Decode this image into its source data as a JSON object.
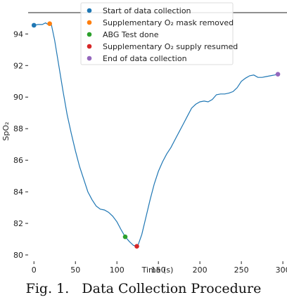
{
  "chart_data": {
    "type": "line",
    "xlabel": "Time (s)",
    "ylabel": "SpO₂",
    "xlim": [
      -7,
      305
    ],
    "ylim": [
      79.6,
      95.35
    ],
    "xticks": [
      0,
      50,
      100,
      150,
      200,
      250,
      300
    ],
    "yticks": [
      80,
      82,
      84,
      86,
      88,
      90,
      92,
      94
    ],
    "grid": false,
    "legend_position": "top",
    "line_color": "#1f77b4",
    "series": [
      {
        "values": [
          [
            0,
            94.55
          ],
          [
            5,
            94.6
          ],
          [
            10,
            94.6
          ],
          [
            14,
            94.7
          ],
          [
            17,
            94.6
          ],
          [
            19,
            94.65
          ],
          [
            21,
            94.6
          ],
          [
            25,
            93.6
          ],
          [
            30,
            92.0
          ],
          [
            35,
            90.4
          ],
          [
            40,
            88.9
          ],
          [
            45,
            87.7
          ],
          [
            50,
            86.6
          ],
          [
            55,
            85.6
          ],
          [
            60,
            84.8
          ],
          [
            65,
            84.0
          ],
          [
            70,
            83.5
          ],
          [
            75,
            83.1
          ],
          [
            80,
            82.9
          ],
          [
            85,
            82.85
          ],
          [
            90,
            82.7
          ],
          [
            95,
            82.45
          ],
          [
            100,
            82.1
          ],
          [
            105,
            81.6
          ],
          [
            110,
            81.15
          ],
          [
            115,
            80.85
          ],
          [
            120,
            80.6
          ],
          [
            125,
            80.55
          ],
          [
            130,
            81.3
          ],
          [
            135,
            82.4
          ],
          [
            140,
            83.5
          ],
          [
            145,
            84.5
          ],
          [
            150,
            85.3
          ],
          [
            155,
            85.9
          ],
          [
            160,
            86.4
          ],
          [
            165,
            86.8
          ],
          [
            170,
            87.3
          ],
          [
            175,
            87.8
          ],
          [
            180,
            88.3
          ],
          [
            185,
            88.8
          ],
          [
            190,
            89.3
          ],
          [
            195,
            89.55
          ],
          [
            200,
            89.7
          ],
          [
            205,
            89.75
          ],
          [
            210,
            89.7
          ],
          [
            215,
            89.85
          ],
          [
            220,
            90.15
          ],
          [
            225,
            90.2
          ],
          [
            230,
            90.2
          ],
          [
            235,
            90.25
          ],
          [
            240,
            90.35
          ],
          [
            245,
            90.6
          ],
          [
            250,
            91.0
          ],
          [
            255,
            91.2
          ],
          [
            260,
            91.35
          ],
          [
            265,
            91.4
          ],
          [
            270,
            91.25
          ],
          [
            275,
            91.25
          ],
          [
            280,
            91.3
          ],
          [
            285,
            91.35
          ],
          [
            290,
            91.4
          ],
          [
            294,
            91.45
          ]
        ]
      }
    ],
    "markers": [
      {
        "label": "Start of data collection",
        "x": 0,
        "y": 94.55,
        "color": "#1f77b4"
      },
      {
        "label": "Supplementary O₂ mask removed",
        "x": 19,
        "y": 94.65,
        "color": "#ff7f0e"
      },
      {
        "label": "ABG Test done",
        "x": 110,
        "y": 81.15,
        "color": "#2ca02c"
      },
      {
        "label": "Supplementary O₂ supply resumed",
        "x": 124,
        "y": 80.55,
        "color": "#d62728"
      },
      {
        "label": "End of data collection",
        "x": 294,
        "y": 91.45,
        "color": "#9467bd"
      }
    ]
  },
  "caption": "Fig. 1.   Data Collection Procedure"
}
